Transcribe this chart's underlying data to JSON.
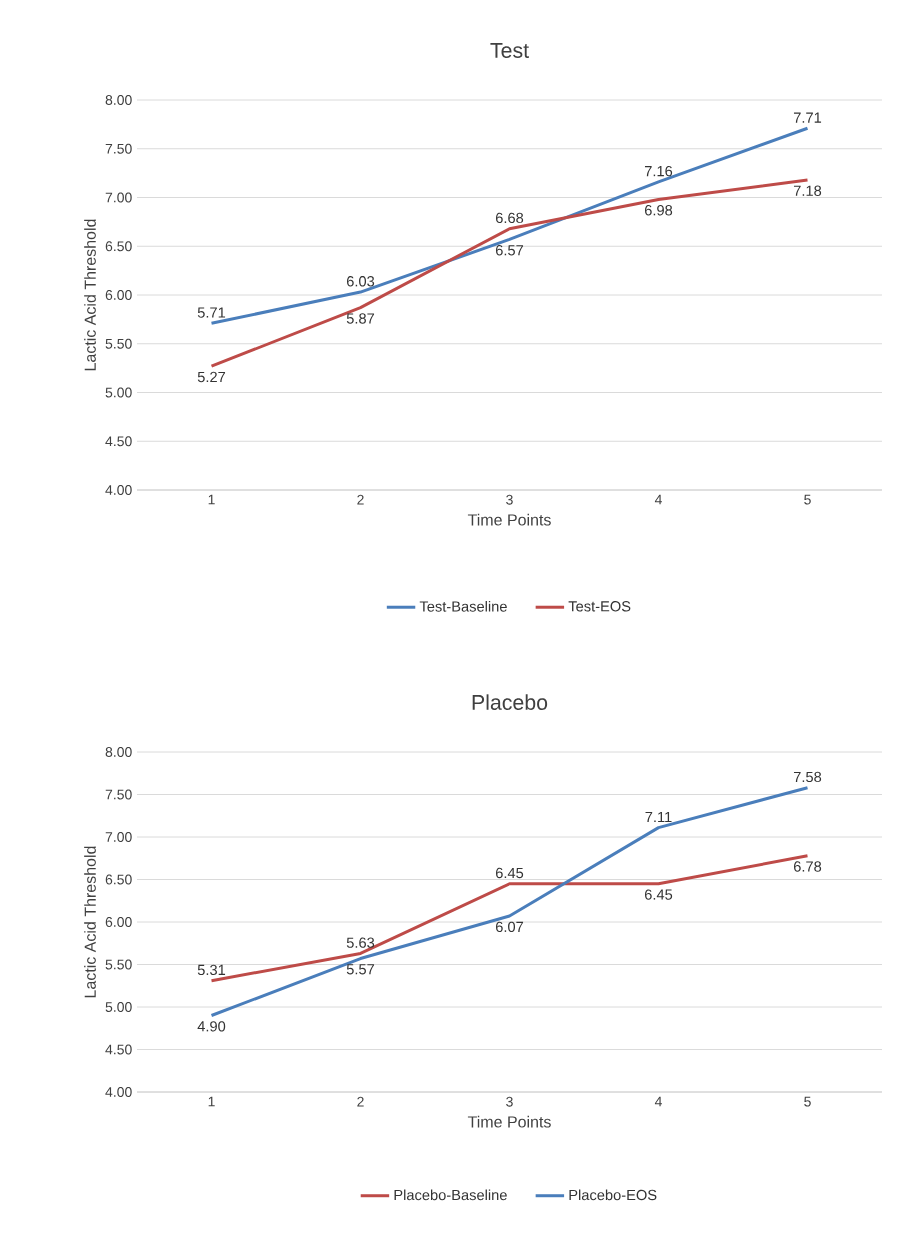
{
  "chart_data": [
    {
      "type": "line",
      "title": "Test",
      "xlabel": "Time Points",
      "ylabel": "Lactic Acid Threshold",
      "categories": [
        "1",
        "2",
        "3",
        "4",
        "5"
      ],
      "series": [
        {
          "name": "Test-Baseline",
          "color": "#4a7ebb",
          "values": [
            5.71,
            6.03,
            6.57,
            7.16,
            7.71
          ],
          "value_labels": [
            "5.71",
            "6.03",
            "6.57",
            "7.16",
            "7.71"
          ]
        },
        {
          "name": "Test-EOS",
          "color": "#be4b48",
          "values": [
            5.27,
            5.87,
            6.68,
            6.98,
            7.18
          ],
          "value_labels": [
            "5.27",
            "5.87",
            "6.68",
            "6.98",
            "7.18"
          ]
        }
      ],
      "ylim": [
        4,
        8
      ],
      "yticks": [
        {
          "value": 4,
          "label": "4.00"
        },
        {
          "value": 4.5,
          "label": "4.50"
        },
        {
          "value": 5,
          "label": "5.00"
        },
        {
          "value": 5.5,
          "label": "5.50"
        },
        {
          "value": 6,
          "label": "6.00"
        },
        {
          "value": 6.5,
          "label": "6.50"
        },
        {
          "value": 7,
          "label": "7.00"
        },
        {
          "value": 7.5,
          "label": "7.50"
        },
        {
          "value": 8,
          "label": "8.00"
        }
      ],
      "grid": "y",
      "legend": "bottom",
      "marker": "none"
    },
    {
      "type": "line",
      "title": "Placebo",
      "xlabel": "Time Points",
      "ylabel": "Lactic Acid Threshold",
      "categories": [
        "1",
        "2",
        "3",
        "4",
        "5"
      ],
      "series": [
        {
          "name": "Placebo-Baseline",
          "color": "#be4b48",
          "values": [
            5.31,
            5.63,
            6.45,
            6.45,
            6.78
          ],
          "value_labels": [
            "5.31",
            "5.63",
            "6.45",
            "6.45",
            "6.78"
          ]
        },
        {
          "name": "Placebo-EOS",
          "color": "#4a7ebb",
          "values": [
            4.9,
            5.57,
            6.07,
            7.11,
            7.58
          ],
          "value_labels": [
            "4.90",
            "5.57",
            "6.07",
            "7.11",
            "7.58"
          ]
        }
      ],
      "ylim": [
        4,
        8
      ],
      "yticks": [
        {
          "value": 4,
          "label": "4.00"
        },
        {
          "value": 4.5,
          "label": "4.50"
        },
        {
          "value": 5,
          "label": "5.00"
        },
        {
          "value": 5.5,
          "label": "5.50"
        },
        {
          "value": 6,
          "label": "6.00"
        },
        {
          "value": 6.5,
          "label": "6.50"
        },
        {
          "value": 7,
          "label": "7.00"
        },
        {
          "value": 7.5,
          "label": "7.50"
        },
        {
          "value": 8,
          "label": "8.00"
        }
      ],
      "grid": "y",
      "legend": "bottom",
      "marker": "none"
    }
  ]
}
